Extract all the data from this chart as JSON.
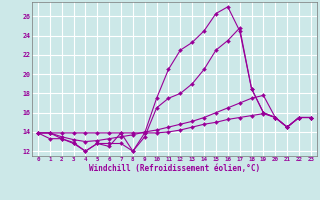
{
  "xlabel": "Windchill (Refroidissement éolien,°C)",
  "background_color": "#cce8e8",
  "line_color": "#990099",
  "grid_color": "#ffffff",
  "xlim_min": -0.5,
  "xlim_max": 23.5,
  "ylim_min": 11.5,
  "ylim_max": 27.5,
  "xticks": [
    0,
    1,
    2,
    3,
    4,
    5,
    6,
    7,
    8,
    9,
    10,
    11,
    12,
    13,
    14,
    15,
    16,
    17,
    18,
    19,
    20,
    21,
    22,
    23
  ],
  "yticks": [
    12,
    14,
    16,
    18,
    20,
    22,
    24,
    26
  ],
  "series": [
    [
      13.9,
      13.9,
      13.3,
      12.8,
      12.0,
      12.8,
      12.8,
      12.8,
      12.0,
      13.9,
      17.5,
      20.5,
      22.5,
      23.3,
      24.5,
      26.3,
      27.0,
      24.5,
      18.5,
      16.0,
      15.5,
      14.5,
      15.5,
      15.5
    ],
    [
      13.9,
      13.3,
      13.3,
      12.9,
      12.0,
      12.8,
      12.5,
      13.9,
      12.0,
      13.5,
      16.5,
      17.5,
      18.0,
      19.0,
      20.5,
      22.5,
      23.5,
      24.8,
      18.5,
      16.0,
      15.5,
      14.5,
      15.5,
      15.5
    ],
    [
      13.9,
      13.9,
      13.5,
      13.2,
      13.0,
      13.1,
      13.3,
      13.5,
      13.7,
      14.0,
      14.2,
      14.5,
      14.8,
      15.1,
      15.5,
      16.0,
      16.5,
      17.0,
      17.5,
      17.8,
      15.5,
      14.5,
      15.5,
      15.5
    ],
    [
      13.9,
      13.9,
      13.9,
      13.9,
      13.9,
      13.9,
      13.9,
      13.9,
      13.9,
      13.9,
      13.9,
      14.0,
      14.2,
      14.5,
      14.8,
      15.0,
      15.3,
      15.5,
      15.7,
      15.9,
      15.5,
      14.5,
      15.5,
      15.5
    ]
  ]
}
